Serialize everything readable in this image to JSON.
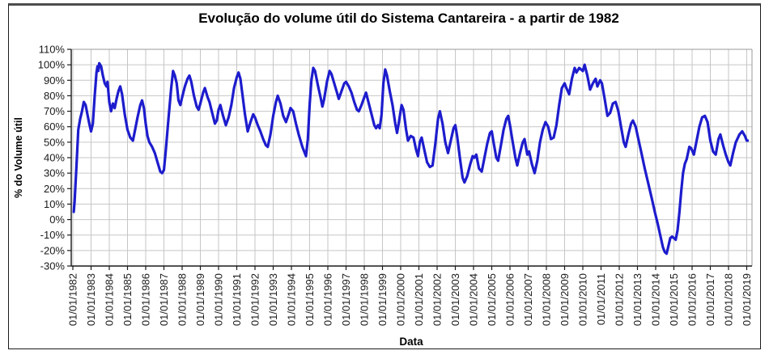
{
  "chart_data": {
    "type": "line",
    "title": "Evolução do volume útil do Sistema Cantareira - a partir de 1982",
    "xlabel": "Data",
    "ylabel": "% do Volume útil",
    "ylim": [
      -30,
      110
    ],
    "y_step": 10,
    "xlim": [
      1982,
      2019.35
    ],
    "grid": true,
    "legend": "none",
    "y_tick_labels": [
      "110%",
      "100%",
      "90%",
      "80%",
      "70%",
      "60%",
      "50%",
      "40%",
      "30%",
      "20%",
      "10%",
      "0%",
      "-10%",
      "-20%",
      "-30%"
    ],
    "y_tick_values": [
      110,
      100,
      90,
      80,
      70,
      60,
      50,
      40,
      30,
      20,
      10,
      0,
      -10,
      -20,
      -30
    ],
    "x_tick_labels": [
      "01/01/1982",
      "01/01/1983",
      "01/01/1984",
      "01/01/1985",
      "01/01/1986",
      "01/01/1987",
      "01/01/1988",
      "01/01/1989",
      "01/01/1990",
      "01/01/1991",
      "01/01/1992",
      "01/01/1993",
      "01/01/1994",
      "01/01/1995",
      "01/01/1996",
      "01/01/1997",
      "01/01/1998",
      "01/01/1999",
      "01/01/2000",
      "01/01/2001",
      "01/01/2002",
      "01/01/2003",
      "01/01/2004",
      "01/01/2005",
      "01/01/2006",
      "01/01/2007",
      "01/01/2008",
      "01/01/2009",
      "01/01/2010",
      "01/01/2011",
      "01/01/2012",
      "01/01/2013",
      "01/01/2014",
      "01/01/2015",
      "01/01/2016",
      "01/01/2017",
      "01/01/2018",
      "01/01/2019"
    ],
    "x_tick_years": [
      1982,
      1983,
      1984,
      1985,
      1986,
      1987,
      1988,
      1989,
      1990,
      1991,
      1992,
      1993,
      1994,
      1995,
      1996,
      1997,
      1998,
      1999,
      2000,
      2001,
      2002,
      2003,
      2004,
      2005,
      2006,
      2007,
      2008,
      2009,
      2010,
      2011,
      2012,
      2013,
      2014,
      2015,
      2016,
      2017,
      2018,
      2019
    ],
    "series": [
      {
        "name": "% do volume útil",
        "color": "#1d1ccd",
        "points": [
          [
            1982.05,
            5
          ],
          [
            1982.1,
            12
          ],
          [
            1982.2,
            35
          ],
          [
            1982.3,
            58
          ],
          [
            1982.4,
            65
          ],
          [
            1982.5,
            70
          ],
          [
            1982.6,
            76
          ],
          [
            1982.7,
            74
          ],
          [
            1982.8,
            68
          ],
          [
            1982.9,
            62
          ],
          [
            1983.0,
            57
          ],
          [
            1983.1,
            62
          ],
          [
            1983.2,
            80
          ],
          [
            1983.3,
            95
          ],
          [
            1983.35,
            99
          ],
          [
            1983.4,
            96
          ],
          [
            1983.45,
            101
          ],
          [
            1983.55,
            99
          ],
          [
            1983.65,
            93
          ],
          [
            1983.75,
            88
          ],
          [
            1983.85,
            86
          ],
          [
            1983.9,
            89
          ],
          [
            1984.0,
            76
          ],
          [
            1984.1,
            70
          ],
          [
            1984.2,
            75
          ],
          [
            1984.3,
            72
          ],
          [
            1984.4,
            78
          ],
          [
            1984.5,
            83
          ],
          [
            1984.6,
            86
          ],
          [
            1984.7,
            81
          ],
          [
            1984.85,
            68
          ],
          [
            1985.0,
            58
          ],
          [
            1985.15,
            53
          ],
          [
            1985.3,
            51
          ],
          [
            1985.4,
            57
          ],
          [
            1985.55,
            66
          ],
          [
            1985.7,
            74
          ],
          [
            1985.8,
            77
          ],
          [
            1985.9,
            72
          ],
          [
            1986.0,
            62
          ],
          [
            1986.1,
            54
          ],
          [
            1986.2,
            50
          ],
          [
            1986.35,
            47
          ],
          [
            1986.5,
            43
          ],
          [
            1986.65,
            37
          ],
          [
            1986.8,
            31
          ],
          [
            1986.9,
            30
          ],
          [
            1987.0,
            32
          ],
          [
            1987.1,
            44
          ],
          [
            1987.25,
            65
          ],
          [
            1987.4,
            85
          ],
          [
            1987.5,
            96
          ],
          [
            1987.6,
            93
          ],
          [
            1987.7,
            88
          ],
          [
            1987.8,
            77
          ],
          [
            1987.9,
            74
          ],
          [
            1988.0,
            79
          ],
          [
            1988.15,
            86
          ],
          [
            1988.3,
            91
          ],
          [
            1988.4,
            93
          ],
          [
            1988.5,
            89
          ],
          [
            1988.65,
            80
          ],
          [
            1988.8,
            73
          ],
          [
            1988.9,
            71
          ],
          [
            1989.0,
            75
          ],
          [
            1989.15,
            82
          ],
          [
            1989.25,
            85
          ],
          [
            1989.4,
            79
          ],
          [
            1989.5,
            76
          ],
          [
            1989.65,
            69
          ],
          [
            1989.8,
            62
          ],
          [
            1989.9,
            64
          ],
          [
            1990.0,
            71
          ],
          [
            1990.1,
            74
          ],
          [
            1990.25,
            67
          ],
          [
            1990.4,
            61
          ],
          [
            1990.55,
            66
          ],
          [
            1990.7,
            74
          ],
          [
            1990.85,
            85
          ],
          [
            1991.0,
            92
          ],
          [
            1991.1,
            95
          ],
          [
            1991.2,
            91
          ],
          [
            1991.3,
            82
          ],
          [
            1991.45,
            68
          ],
          [
            1991.6,
            57
          ],
          [
            1991.75,
            63
          ],
          [
            1991.9,
            68
          ],
          [
            1992.0,
            66
          ],
          [
            1992.15,
            61
          ],
          [
            1992.3,
            57
          ],
          [
            1992.45,
            52
          ],
          [
            1992.6,
            48
          ],
          [
            1992.7,
            47
          ],
          [
            1992.85,
            55
          ],
          [
            1993.0,
            67
          ],
          [
            1993.15,
            76
          ],
          [
            1993.25,
            80
          ],
          [
            1993.4,
            75
          ],
          [
            1993.55,
            67
          ],
          [
            1993.7,
            63
          ],
          [
            1993.85,
            68
          ],
          [
            1993.95,
            72
          ],
          [
            1994.1,
            70
          ],
          [
            1994.25,
            62
          ],
          [
            1994.4,
            55
          ],
          [
            1994.6,
            47
          ],
          [
            1994.8,
            41
          ],
          [
            1994.9,
            52
          ],
          [
            1995.0,
            74
          ],
          [
            1995.1,
            90
          ],
          [
            1995.2,
            98
          ],
          [
            1995.3,
            96
          ],
          [
            1995.45,
            87
          ],
          [
            1995.6,
            79
          ],
          [
            1995.7,
            73
          ],
          [
            1995.8,
            78
          ],
          [
            1995.95,
            89
          ],
          [
            1996.1,
            96
          ],
          [
            1996.2,
            94
          ],
          [
            1996.35,
            88
          ],
          [
            1996.5,
            82
          ],
          [
            1996.6,
            78
          ],
          [
            1996.75,
            83
          ],
          [
            1996.9,
            88
          ],
          [
            1997.0,
            89
          ],
          [
            1997.15,
            86
          ],
          [
            1997.3,
            82
          ],
          [
            1997.45,
            76
          ],
          [
            1997.6,
            71
          ],
          [
            1997.7,
            70
          ],
          [
            1997.85,
            74
          ],
          [
            1998.0,
            79
          ],
          [
            1998.1,
            82
          ],
          [
            1998.25,
            75
          ],
          [
            1998.4,
            68
          ],
          [
            1998.55,
            61
          ],
          [
            1998.65,
            59
          ],
          [
            1998.75,
            61
          ],
          [
            1998.85,
            59
          ],
          [
            1998.95,
            68
          ],
          [
            1999.05,
            88
          ],
          [
            1999.15,
            97
          ],
          [
            1999.25,
            93
          ],
          [
            1999.4,
            83
          ],
          [
            1999.55,
            74
          ],
          [
            1999.7,
            62
          ],
          [
            1999.8,
            56
          ],
          [
            1999.9,
            63
          ],
          [
            2000.05,
            74
          ],
          [
            2000.15,
            71
          ],
          [
            2000.3,
            58
          ],
          [
            2000.4,
            51
          ],
          [
            2000.55,
            54
          ],
          [
            2000.7,
            53
          ],
          [
            2000.85,
            45
          ],
          [
            2000.95,
            41
          ],
          [
            2001.05,
            50
          ],
          [
            2001.15,
            53
          ],
          [
            2001.3,
            45
          ],
          [
            2001.45,
            37
          ],
          [
            2001.6,
            34
          ],
          [
            2001.75,
            35
          ],
          [
            2001.9,
            49
          ],
          [
            2002.05,
            65
          ],
          [
            2002.15,
            70
          ],
          [
            2002.3,
            62
          ],
          [
            2002.45,
            50
          ],
          [
            2002.6,
            43
          ],
          [
            2002.75,
            51
          ],
          [
            2002.9,
            59
          ],
          [
            2003.0,
            61
          ],
          [
            2003.1,
            54
          ],
          [
            2003.25,
            40
          ],
          [
            2003.4,
            27
          ],
          [
            2003.5,
            24
          ],
          [
            2003.65,
            28
          ],
          [
            2003.8,
            35
          ],
          [
            2003.95,
            41
          ],
          [
            2004.05,
            40
          ],
          [
            2004.15,
            42
          ],
          [
            2004.3,
            33
          ],
          [
            2004.45,
            31
          ],
          [
            2004.6,
            40
          ],
          [
            2004.75,
            49
          ],
          [
            2004.9,
            56
          ],
          [
            2005.0,
            57
          ],
          [
            2005.1,
            50
          ],
          [
            2005.25,
            40
          ],
          [
            2005.35,
            38
          ],
          [
            2005.5,
            48
          ],
          [
            2005.65,
            58
          ],
          [
            2005.8,
            65
          ],
          [
            2005.9,
            67
          ],
          [
            2006.0,
            61
          ],
          [
            2006.15,
            50
          ],
          [
            2006.3,
            40
          ],
          [
            2006.4,
            35
          ],
          [
            2006.55,
            43
          ],
          [
            2006.7,
            50
          ],
          [
            2006.8,
            52
          ],
          [
            2006.95,
            42
          ],
          [
            2007.05,
            44
          ],
          [
            2007.2,
            36
          ],
          [
            2007.35,
            30
          ],
          [
            2007.5,
            38
          ],
          [
            2007.65,
            50
          ],
          [
            2007.8,
            58
          ],
          [
            2007.95,
            63
          ],
          [
            2008.1,
            60
          ],
          [
            2008.25,
            52
          ],
          [
            2008.4,
            53
          ],
          [
            2008.55,
            61
          ],
          [
            2008.7,
            74
          ],
          [
            2008.85,
            85
          ],
          [
            2009.0,
            88
          ],
          [
            2009.1,
            85
          ],
          [
            2009.25,
            81
          ],
          [
            2009.4,
            91
          ],
          [
            2009.55,
            98
          ],
          [
            2009.65,
            95
          ],
          [
            2009.8,
            98
          ],
          [
            2009.9,
            97
          ],
          [
            2010.0,
            96
          ],
          [
            2010.1,
            100
          ],
          [
            2010.25,
            93
          ],
          [
            2010.4,
            84
          ],
          [
            2010.55,
            88
          ],
          [
            2010.7,
            91
          ],
          [
            2010.8,
            86
          ],
          [
            2010.95,
            90
          ],
          [
            2011.05,
            88
          ],
          [
            2011.2,
            78
          ],
          [
            2011.35,
            67
          ],
          [
            2011.5,
            69
          ],
          [
            2011.65,
            75
          ],
          [
            2011.8,
            76
          ],
          [
            2011.95,
            70
          ],
          [
            2012.1,
            60
          ],
          [
            2012.25,
            50
          ],
          [
            2012.35,
            47
          ],
          [
            2012.5,
            55
          ],
          [
            2012.65,
            62
          ],
          [
            2012.75,
            64
          ],
          [
            2012.9,
            60
          ],
          [
            2013.05,
            52
          ],
          [
            2013.2,
            44
          ],
          [
            2013.4,
            33
          ],
          [
            2013.6,
            23
          ],
          [
            2013.8,
            13
          ],
          [
            2013.95,
            5
          ],
          [
            2014.1,
            -2
          ],
          [
            2014.25,
            -10
          ],
          [
            2014.4,
            -18
          ],
          [
            2014.5,
            -21
          ],
          [
            2014.6,
            -22
          ],
          [
            2014.7,
            -17
          ],
          [
            2014.8,
            -12
          ],
          [
            2014.9,
            -11
          ],
          [
            2015.0,
            -12
          ],
          [
            2015.1,
            -13
          ],
          [
            2015.2,
            -7
          ],
          [
            2015.3,
            4
          ],
          [
            2015.4,
            18
          ],
          [
            2015.5,
            30
          ],
          [
            2015.6,
            36
          ],
          [
            2015.7,
            39
          ],
          [
            2015.85,
            47
          ],
          [
            2015.95,
            46
          ],
          [
            2016.1,
            42
          ],
          [
            2016.25,
            51
          ],
          [
            2016.4,
            60
          ],
          [
            2016.55,
            66
          ],
          [
            2016.7,
            67
          ],
          [
            2016.85,
            63
          ],
          [
            2017.0,
            51
          ],
          [
            2017.15,
            44
          ],
          [
            2017.3,
            42
          ],
          [
            2017.45,
            52
          ],
          [
            2017.55,
            55
          ],
          [
            2017.7,
            48
          ],
          [
            2017.85,
            42
          ],
          [
            2018.0,
            37
          ],
          [
            2018.1,
            35
          ],
          [
            2018.25,
            43
          ],
          [
            2018.4,
            50
          ],
          [
            2018.6,
            55
          ],
          [
            2018.75,
            57
          ],
          [
            2018.9,
            54
          ],
          [
            2019.0,
            51
          ],
          [
            2019.05,
            51
          ]
        ]
      }
    ]
  },
  "colors": {
    "line": "#1d1ccd",
    "grid": "#c6c6c6",
    "plot_border": "#9a9a9a",
    "axis": "#1a1a1a",
    "background": "#ffffff",
    "frame_top": "#4d4d4d"
  }
}
